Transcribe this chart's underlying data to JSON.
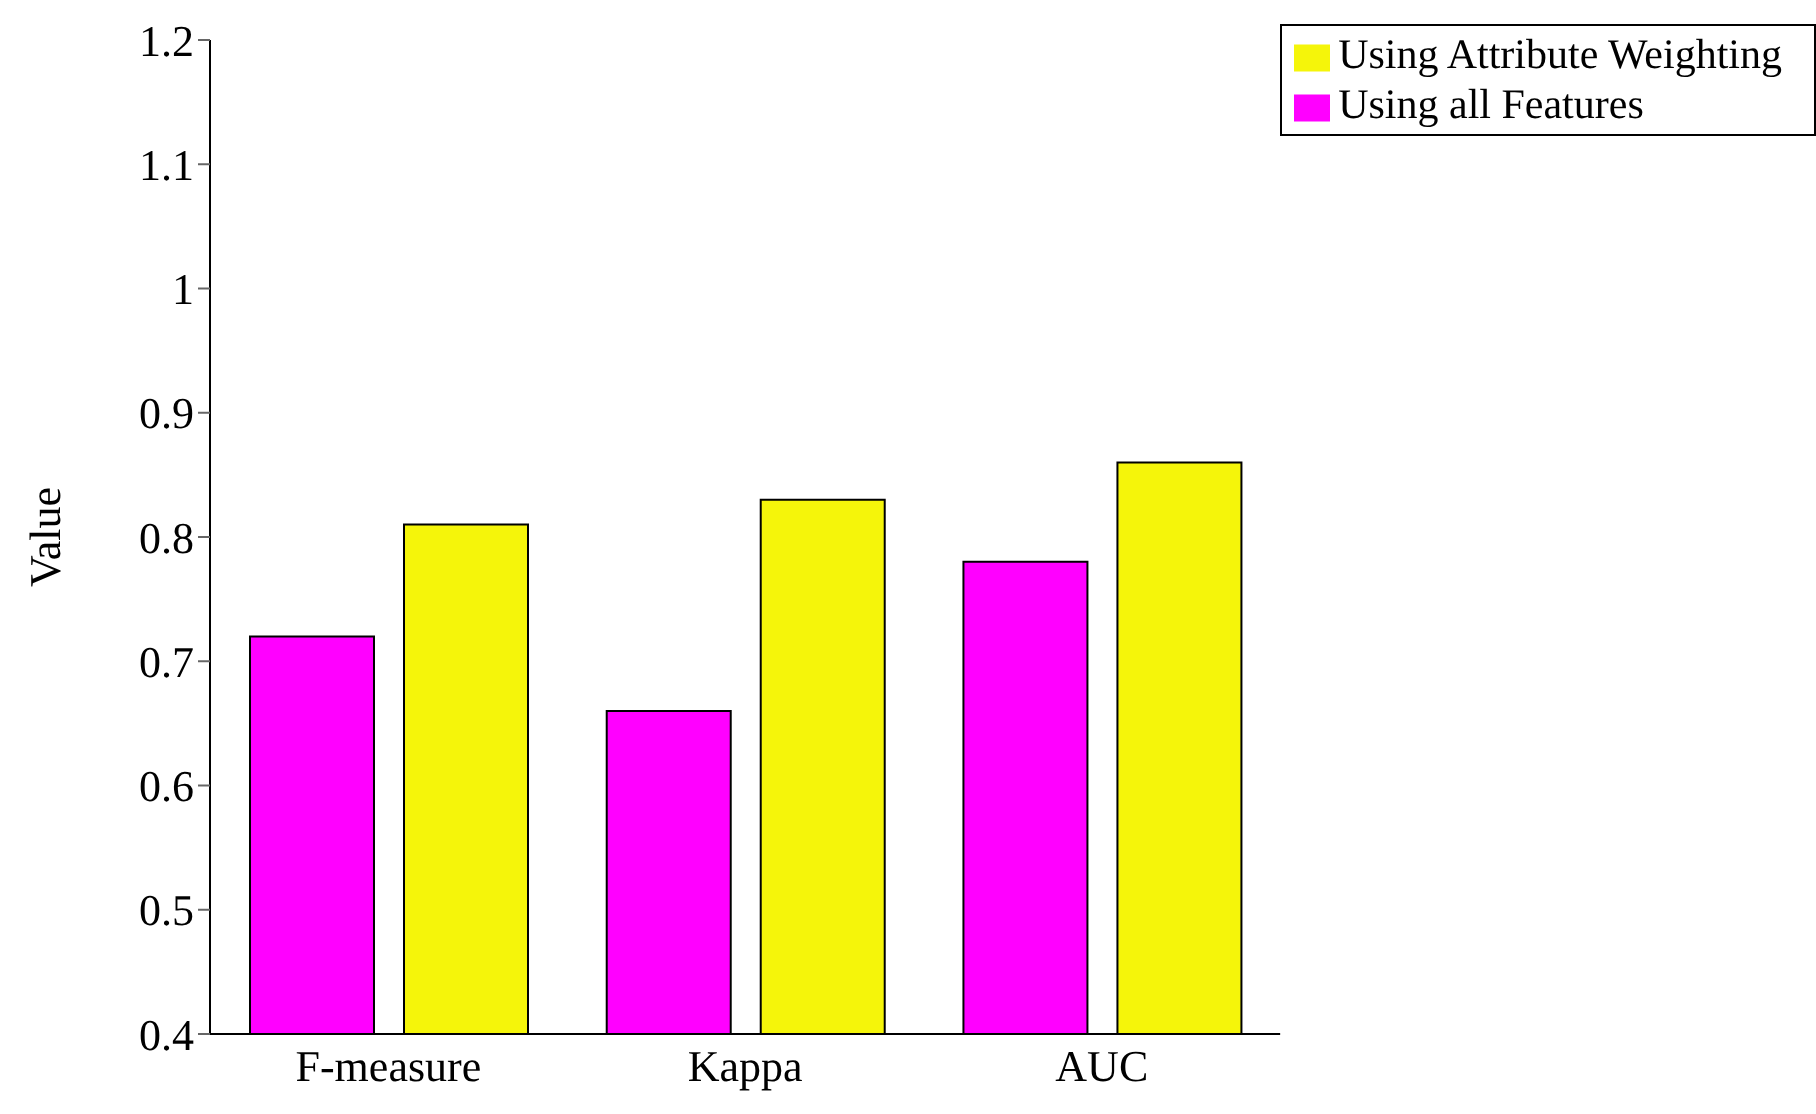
{
  "chart_data": {
    "type": "bar",
    "ylabel": "Value",
    "categories": [
      "F-measure",
      "Kappa",
      "AUC"
    ],
    "series": [
      {
        "name": "Using all Features",
        "color": "#ff00ff",
        "values": [
          0.72,
          0.66,
          0.78
        ]
      },
      {
        "name": "Using Attribute Weighting",
        "color": "#f5f50a",
        "values": [
          0.81,
          0.83,
          0.86
        ]
      }
    ],
    "ylim": [
      0.4,
      1.2
    ],
    "yticks": [
      0.4,
      0.5,
      0.6,
      0.7,
      0.8,
      0.9,
      1,
      1.1,
      1.2
    ],
    "grid": false,
    "legend": "top right"
  }
}
